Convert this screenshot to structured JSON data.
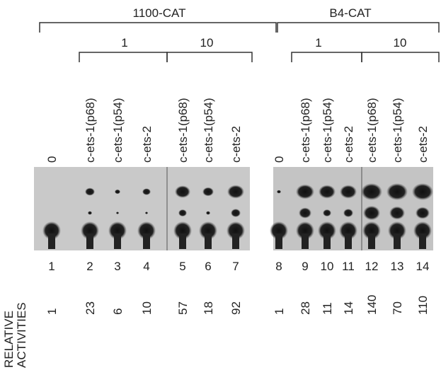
{
  "groups": [
    {
      "label": "1100-CAT",
      "subgroups": [
        {
          "label": "1"
        },
        {
          "label": "10"
        }
      ]
    },
    {
      "label": "B4-CAT",
      "subgroups": [
        {
          "label": "1"
        },
        {
          "label": "10"
        }
      ]
    }
  ],
  "lanes": [
    {
      "label": "0",
      "number": 1,
      "activity": 1
    },
    {
      "label": "c-ets-1(p68)",
      "number": 2,
      "activity": 23
    },
    {
      "label": "c-ets-1(p54)",
      "number": 3,
      "activity": 6
    },
    {
      "label": "c-ets-2",
      "number": 4,
      "activity": 10
    },
    {
      "label": "c-ets-1(p68)",
      "number": 5,
      "activity": 57
    },
    {
      "label": "c-ets-1(p54)",
      "number": 6,
      "activity": 18
    },
    {
      "label": "c-ets-2",
      "number": 7,
      "activity": 92
    },
    {
      "label": "0",
      "number": 8,
      "activity": 1
    },
    {
      "label": "c-ets-1(p68)",
      "number": 9,
      "activity": 28
    },
    {
      "label": "c-ets-1(p54)",
      "number": 10,
      "activity": 11
    },
    {
      "label": "c-ets-2",
      "number": 11,
      "activity": 14
    },
    {
      "label": "c-ets-1(p68)",
      "number": 12,
      "activity": 140
    },
    {
      "label": "c-ets-1(p54)",
      "number": 13,
      "activity": 70
    },
    {
      "label": "c-ets-2",
      "number": 14,
      "activity": 110
    }
  ],
  "row_label": [
    "RELATIVE",
    "ACTIVITIES"
  ]
}
